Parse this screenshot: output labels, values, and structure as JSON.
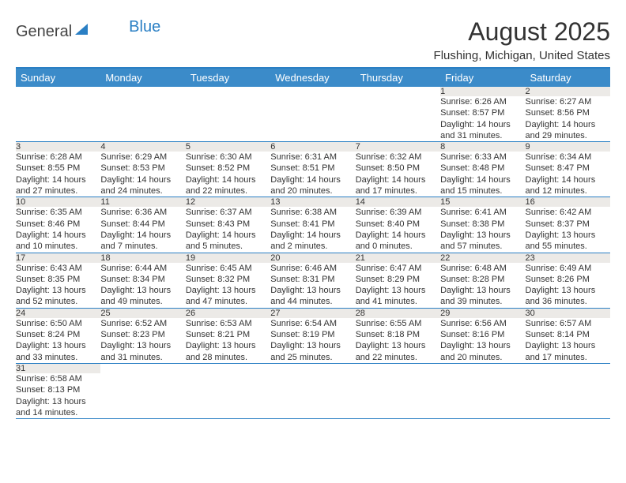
{
  "logo": {
    "general": "General",
    "blue": "Blue"
  },
  "title": "August 2025",
  "subtitle": "Flushing, Michigan, United States",
  "colors": {
    "header_bg": "#3b8bc9",
    "border": "#2a7fc4",
    "daynum_bg": "#eceae7"
  },
  "weekdays": [
    "Sunday",
    "Monday",
    "Tuesday",
    "Wednesday",
    "Thursday",
    "Friday",
    "Saturday"
  ],
  "weeks": [
    [
      null,
      null,
      null,
      null,
      null,
      {
        "n": "1",
        "sr": "Sunrise: 6:26 AM",
        "ss": "Sunset: 8:57 PM",
        "d1": "Daylight: 14 hours",
        "d2": "and 31 minutes."
      },
      {
        "n": "2",
        "sr": "Sunrise: 6:27 AM",
        "ss": "Sunset: 8:56 PM",
        "d1": "Daylight: 14 hours",
        "d2": "and 29 minutes."
      }
    ],
    [
      {
        "n": "3",
        "sr": "Sunrise: 6:28 AM",
        "ss": "Sunset: 8:55 PM",
        "d1": "Daylight: 14 hours",
        "d2": "and 27 minutes."
      },
      {
        "n": "4",
        "sr": "Sunrise: 6:29 AM",
        "ss": "Sunset: 8:53 PM",
        "d1": "Daylight: 14 hours",
        "d2": "and 24 minutes."
      },
      {
        "n": "5",
        "sr": "Sunrise: 6:30 AM",
        "ss": "Sunset: 8:52 PM",
        "d1": "Daylight: 14 hours",
        "d2": "and 22 minutes."
      },
      {
        "n": "6",
        "sr": "Sunrise: 6:31 AM",
        "ss": "Sunset: 8:51 PM",
        "d1": "Daylight: 14 hours",
        "d2": "and 20 minutes."
      },
      {
        "n": "7",
        "sr": "Sunrise: 6:32 AM",
        "ss": "Sunset: 8:50 PM",
        "d1": "Daylight: 14 hours",
        "d2": "and 17 minutes."
      },
      {
        "n": "8",
        "sr": "Sunrise: 6:33 AM",
        "ss": "Sunset: 8:48 PM",
        "d1": "Daylight: 14 hours",
        "d2": "and 15 minutes."
      },
      {
        "n": "9",
        "sr": "Sunrise: 6:34 AM",
        "ss": "Sunset: 8:47 PM",
        "d1": "Daylight: 14 hours",
        "d2": "and 12 minutes."
      }
    ],
    [
      {
        "n": "10",
        "sr": "Sunrise: 6:35 AM",
        "ss": "Sunset: 8:46 PM",
        "d1": "Daylight: 14 hours",
        "d2": "and 10 minutes."
      },
      {
        "n": "11",
        "sr": "Sunrise: 6:36 AM",
        "ss": "Sunset: 8:44 PM",
        "d1": "Daylight: 14 hours",
        "d2": "and 7 minutes."
      },
      {
        "n": "12",
        "sr": "Sunrise: 6:37 AM",
        "ss": "Sunset: 8:43 PM",
        "d1": "Daylight: 14 hours",
        "d2": "and 5 minutes."
      },
      {
        "n": "13",
        "sr": "Sunrise: 6:38 AM",
        "ss": "Sunset: 8:41 PM",
        "d1": "Daylight: 14 hours",
        "d2": "and 2 minutes."
      },
      {
        "n": "14",
        "sr": "Sunrise: 6:39 AM",
        "ss": "Sunset: 8:40 PM",
        "d1": "Daylight: 14 hours",
        "d2": "and 0 minutes."
      },
      {
        "n": "15",
        "sr": "Sunrise: 6:41 AM",
        "ss": "Sunset: 8:38 PM",
        "d1": "Daylight: 13 hours",
        "d2": "and 57 minutes."
      },
      {
        "n": "16",
        "sr": "Sunrise: 6:42 AM",
        "ss": "Sunset: 8:37 PM",
        "d1": "Daylight: 13 hours",
        "d2": "and 55 minutes."
      }
    ],
    [
      {
        "n": "17",
        "sr": "Sunrise: 6:43 AM",
        "ss": "Sunset: 8:35 PM",
        "d1": "Daylight: 13 hours",
        "d2": "and 52 minutes."
      },
      {
        "n": "18",
        "sr": "Sunrise: 6:44 AM",
        "ss": "Sunset: 8:34 PM",
        "d1": "Daylight: 13 hours",
        "d2": "and 49 minutes."
      },
      {
        "n": "19",
        "sr": "Sunrise: 6:45 AM",
        "ss": "Sunset: 8:32 PM",
        "d1": "Daylight: 13 hours",
        "d2": "and 47 minutes."
      },
      {
        "n": "20",
        "sr": "Sunrise: 6:46 AM",
        "ss": "Sunset: 8:31 PM",
        "d1": "Daylight: 13 hours",
        "d2": "and 44 minutes."
      },
      {
        "n": "21",
        "sr": "Sunrise: 6:47 AM",
        "ss": "Sunset: 8:29 PM",
        "d1": "Daylight: 13 hours",
        "d2": "and 41 minutes."
      },
      {
        "n": "22",
        "sr": "Sunrise: 6:48 AM",
        "ss": "Sunset: 8:28 PM",
        "d1": "Daylight: 13 hours",
        "d2": "and 39 minutes."
      },
      {
        "n": "23",
        "sr": "Sunrise: 6:49 AM",
        "ss": "Sunset: 8:26 PM",
        "d1": "Daylight: 13 hours",
        "d2": "and 36 minutes."
      }
    ],
    [
      {
        "n": "24",
        "sr": "Sunrise: 6:50 AM",
        "ss": "Sunset: 8:24 PM",
        "d1": "Daylight: 13 hours",
        "d2": "and 33 minutes."
      },
      {
        "n": "25",
        "sr": "Sunrise: 6:52 AM",
        "ss": "Sunset: 8:23 PM",
        "d1": "Daylight: 13 hours",
        "d2": "and 31 minutes."
      },
      {
        "n": "26",
        "sr": "Sunrise: 6:53 AM",
        "ss": "Sunset: 8:21 PM",
        "d1": "Daylight: 13 hours",
        "d2": "and 28 minutes."
      },
      {
        "n": "27",
        "sr": "Sunrise: 6:54 AM",
        "ss": "Sunset: 8:19 PM",
        "d1": "Daylight: 13 hours",
        "d2": "and 25 minutes."
      },
      {
        "n": "28",
        "sr": "Sunrise: 6:55 AM",
        "ss": "Sunset: 8:18 PM",
        "d1": "Daylight: 13 hours",
        "d2": "and 22 minutes."
      },
      {
        "n": "29",
        "sr": "Sunrise: 6:56 AM",
        "ss": "Sunset: 8:16 PM",
        "d1": "Daylight: 13 hours",
        "d2": "and 20 minutes."
      },
      {
        "n": "30",
        "sr": "Sunrise: 6:57 AM",
        "ss": "Sunset: 8:14 PM",
        "d1": "Daylight: 13 hours",
        "d2": "and 17 minutes."
      }
    ],
    [
      {
        "n": "31",
        "sr": "Sunrise: 6:58 AM",
        "ss": "Sunset: 8:13 PM",
        "d1": "Daylight: 13 hours",
        "d2": "and 14 minutes."
      },
      null,
      null,
      null,
      null,
      null,
      null
    ]
  ]
}
